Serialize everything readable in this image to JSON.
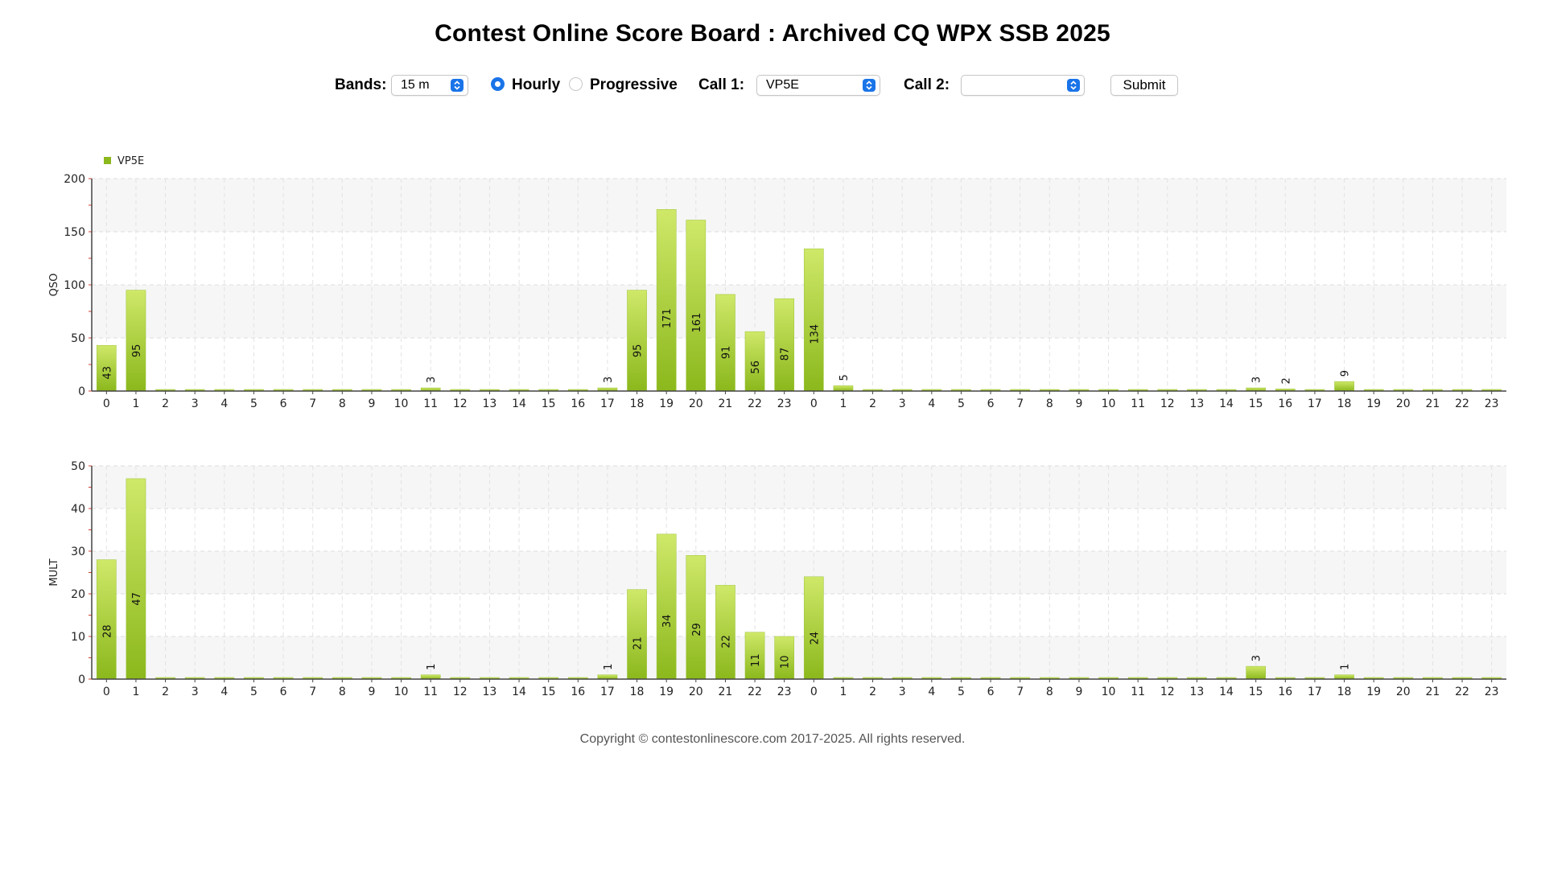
{
  "page": {
    "title": "Contest Online Score Board : Archived CQ WPX SSB 2025"
  },
  "controls": {
    "bands_label": "Bands:",
    "bands_value": "15 m",
    "hourly_label": "Hourly",
    "progressive_label": "Progressive",
    "mode_selected": "Hourly",
    "call1_label": "Call 1:",
    "call1_value": "VP5E",
    "call2_label": "Call 2:",
    "call2_value": "",
    "submit_label": "Submit"
  },
  "colors": {
    "bar_top": "#cfe869",
    "bar_bottom": "#8bb81c",
    "accent": "#1a74e8"
  },
  "chart_data": [
    {
      "type": "bar",
      "legend": "VP5E",
      "legend_placement": "top-left",
      "ylabel": "QSO",
      "ylim": [
        0,
        200
      ],
      "yticks": [
        0,
        50,
        100,
        150,
        200
      ],
      "grid": true,
      "categories": [
        "0",
        "1",
        "2",
        "3",
        "4",
        "5",
        "6",
        "7",
        "8",
        "9",
        "10",
        "11",
        "12",
        "13",
        "14",
        "15",
        "16",
        "17",
        "18",
        "19",
        "20",
        "21",
        "22",
        "23",
        "0",
        "1",
        "2",
        "3",
        "4",
        "5",
        "6",
        "7",
        "8",
        "9",
        "10",
        "11",
        "12",
        "13",
        "14",
        "15",
        "16",
        "17",
        "18",
        "19",
        "20",
        "21",
        "22",
        "23"
      ],
      "series": [
        {
          "name": "VP5E",
          "values": [
            43,
            95,
            0,
            0,
            0,
            0,
            0,
            0,
            0,
            0,
            0,
            3,
            0,
            0,
            0,
            0,
            0,
            3,
            95,
            171,
            161,
            91,
            56,
            87,
            134,
            5,
            0,
            0,
            0,
            0,
            0,
            0,
            0,
            0,
            0,
            0,
            0,
            0,
            0,
            3,
            2,
            0,
            9,
            0,
            0,
            0,
            0,
            0
          ]
        }
      ]
    },
    {
      "type": "bar",
      "ylabel": "MULT",
      "ylim": [
        0,
        50
      ],
      "yticks": [
        0,
        10,
        20,
        30,
        40,
        50
      ],
      "grid": true,
      "categories": [
        "0",
        "1",
        "2",
        "3",
        "4",
        "5",
        "6",
        "7",
        "8",
        "9",
        "10",
        "11",
        "12",
        "13",
        "14",
        "15",
        "16",
        "17",
        "18",
        "19",
        "20",
        "21",
        "22",
        "23",
        "0",
        "1",
        "2",
        "3",
        "4",
        "5",
        "6",
        "7",
        "8",
        "9",
        "10",
        "11",
        "12",
        "13",
        "14",
        "15",
        "16",
        "17",
        "18",
        "19",
        "20",
        "21",
        "22",
        "23"
      ],
      "series": [
        {
          "name": "VP5E",
          "values": [
            28,
            47,
            0,
            0,
            0,
            0,
            0,
            0,
            0,
            0,
            0,
            1,
            0,
            0,
            0,
            0,
            0,
            1,
            21,
            34,
            29,
            22,
            11,
            10,
            24,
            0,
            0,
            0,
            0,
            0,
            0,
            0,
            0,
            0,
            0,
            0,
            0,
            0,
            0,
            3,
            0,
            0,
            1,
            0,
            0,
            0,
            0,
            0
          ]
        }
      ]
    }
  ],
  "footer": {
    "copyright": "Copyright © contestonlinescore.com 2017-2025. All rights reserved."
  }
}
